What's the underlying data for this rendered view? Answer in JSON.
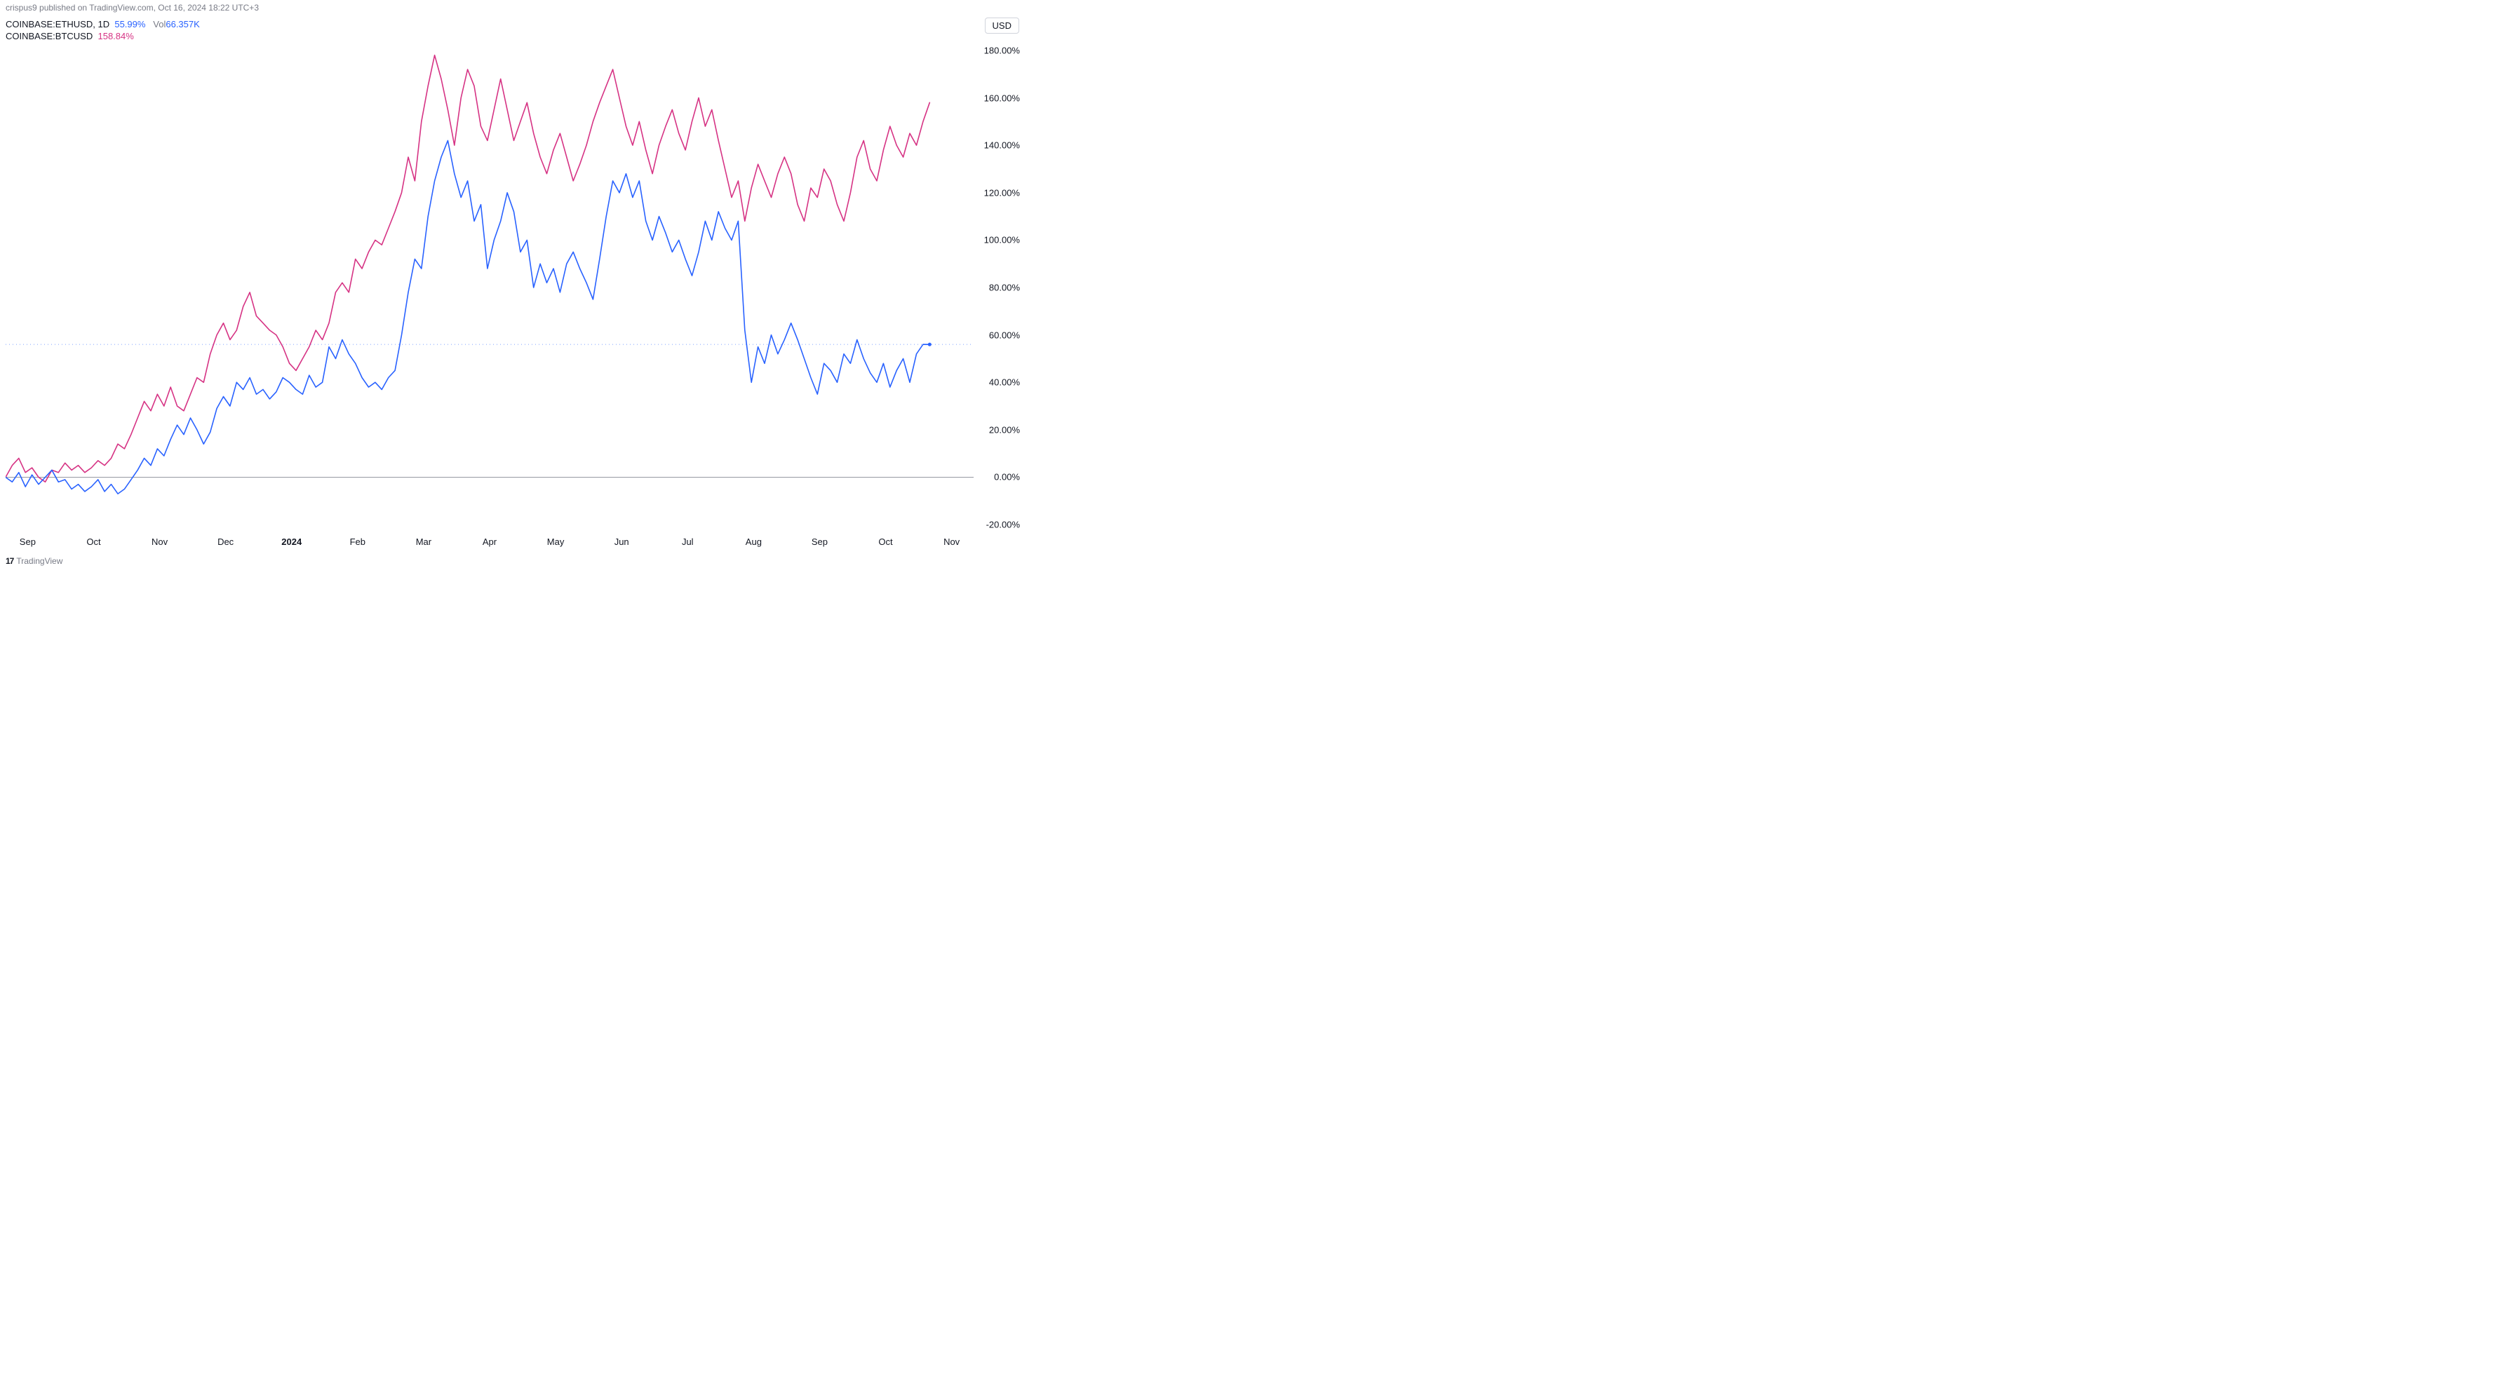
{
  "header": {
    "publish_text": "crispus9 published on TradingView.com, Oct 16, 2024 18:22 UTC+3"
  },
  "legend": {
    "series1": {
      "symbol": "COINBASE:ETHUSD",
      "timeframe": "1D",
      "pct": "55.99%",
      "vol_label": "Vol",
      "vol_value": "66.357K"
    },
    "series2": {
      "symbol": "COINBASE:BTCUSD",
      "pct": "158.84%"
    }
  },
  "usd_badge": "USD",
  "footer": {
    "logo": "17",
    "text": "TradingView"
  },
  "chart": {
    "type": "line",
    "background_color": "#ffffff",
    "y": {
      "min": -25,
      "max": 185,
      "ticks": [
        -20,
        0,
        20,
        40,
        60,
        80,
        100,
        120,
        140,
        160,
        180
      ],
      "tick_labels": [
        "-20.00%",
        "0.00%",
        "20.00%",
        "40.00%",
        "60.00%",
        "80.00%",
        "100.00%",
        "120.00%",
        "140.00%",
        "160.00%",
        "180.00%"
      ],
      "zero_line_color": "#9598a1",
      "dashed_line_value": 55.99,
      "dashed_line_color": "#2962ff"
    },
    "x": {
      "min": 0,
      "max": 440,
      "ticks": [
        10,
        40,
        70,
        100,
        130,
        160,
        190,
        220,
        250,
        280,
        310,
        340,
        370,
        400,
        430
      ],
      "tick_labels": [
        "Sep",
        "Oct",
        "Nov",
        "Dec",
        "2024",
        "Feb",
        "Mar",
        "Apr",
        "May",
        "Jun",
        "Jul",
        "Aug",
        "Sep",
        "Oct",
        "Nov"
      ],
      "bold_index": 4
    },
    "eth": {
      "color": "#2962ff",
      "width": 1.6,
      "data": [
        [
          0,
          0
        ],
        [
          3,
          -2
        ],
        [
          6,
          2
        ],
        [
          9,
          -4
        ],
        [
          12,
          1
        ],
        [
          15,
          -3
        ],
        [
          18,
          0
        ],
        [
          21,
          3
        ],
        [
          24,
          -2
        ],
        [
          27,
          -1
        ],
        [
          30,
          -5
        ],
        [
          33,
          -3
        ],
        [
          36,
          -6
        ],
        [
          39,
          -4
        ],
        [
          42,
          -1
        ],
        [
          45,
          -6
        ],
        [
          48,
          -3
        ],
        [
          51,
          -7
        ],
        [
          54,
          -5
        ],
        [
          57,
          -1
        ],
        [
          60,
          3
        ],
        [
          63,
          8
        ],
        [
          66,
          5
        ],
        [
          69,
          12
        ],
        [
          72,
          9
        ],
        [
          75,
          16
        ],
        [
          78,
          22
        ],
        [
          81,
          18
        ],
        [
          84,
          25
        ],
        [
          87,
          20
        ],
        [
          90,
          14
        ],
        [
          93,
          19
        ],
        [
          96,
          29
        ],
        [
          99,
          34
        ],
        [
          102,
          30
        ],
        [
          105,
          40
        ],
        [
          108,
          37
        ],
        [
          111,
          42
        ],
        [
          114,
          35
        ],
        [
          117,
          37
        ],
        [
          120,
          33
        ],
        [
          123,
          36
        ],
        [
          126,
          42
        ],
        [
          129,
          40
        ],
        [
          132,
          37
        ],
        [
          135,
          35
        ],
        [
          138,
          43
        ],
        [
          141,
          38
        ],
        [
          144,
          40
        ],
        [
          147,
          55
        ],
        [
          150,
          50
        ],
        [
          153,
          58
        ],
        [
          156,
          52
        ],
        [
          159,
          48
        ],
        [
          162,
          42
        ],
        [
          165,
          38
        ],
        [
          168,
          40
        ],
        [
          171,
          37
        ],
        [
          174,
          42
        ],
        [
          177,
          45
        ],
        [
          180,
          60
        ],
        [
          183,
          78
        ],
        [
          186,
          92
        ],
        [
          189,
          88
        ],
        [
          192,
          110
        ],
        [
          195,
          125
        ],
        [
          198,
          135
        ],
        [
          201,
          142
        ],
        [
          204,
          128
        ],
        [
          207,
          118
        ],
        [
          210,
          125
        ],
        [
          213,
          108
        ],
        [
          216,
          115
        ],
        [
          219,
          88
        ],
        [
          222,
          100
        ],
        [
          225,
          108
        ],
        [
          228,
          120
        ],
        [
          231,
          112
        ],
        [
          234,
          95
        ],
        [
          237,
          100
        ],
        [
          240,
          80
        ],
        [
          243,
          90
        ],
        [
          246,
          82
        ],
        [
          249,
          88
        ],
        [
          252,
          78
        ],
        [
          255,
          90
        ],
        [
          258,
          95
        ],
        [
          261,
          88
        ],
        [
          264,
          82
        ],
        [
          267,
          75
        ],
        [
          270,
          92
        ],
        [
          273,
          110
        ],
        [
          276,
          125
        ],
        [
          279,
          120
        ],
        [
          282,
          128
        ],
        [
          285,
          118
        ],
        [
          288,
          125
        ],
        [
          291,
          108
        ],
        [
          294,
          100
        ],
        [
          297,
          110
        ],
        [
          300,
          103
        ],
        [
          303,
          95
        ],
        [
          306,
          100
        ],
        [
          309,
          92
        ],
        [
          312,
          85
        ],
        [
          315,
          95
        ],
        [
          318,
          108
        ],
        [
          321,
          100
        ],
        [
          324,
          112
        ],
        [
          327,
          105
        ],
        [
          330,
          100
        ],
        [
          333,
          108
        ],
        [
          336,
          62
        ],
        [
          339,
          40
        ],
        [
          342,
          55
        ],
        [
          345,
          48
        ],
        [
          348,
          60
        ],
        [
          351,
          52
        ],
        [
          354,
          58
        ],
        [
          357,
          65
        ],
        [
          360,
          58
        ],
        [
          363,
          50
        ],
        [
          366,
          42
        ],
        [
          369,
          35
        ],
        [
          372,
          48
        ],
        [
          375,
          45
        ],
        [
          378,
          40
        ],
        [
          381,
          52
        ],
        [
          384,
          48
        ],
        [
          387,
          58
        ],
        [
          390,
          50
        ],
        [
          393,
          44
        ],
        [
          396,
          40
        ],
        [
          399,
          48
        ],
        [
          402,
          38
        ],
        [
          405,
          45
        ],
        [
          408,
          50
        ],
        [
          411,
          40
        ],
        [
          414,
          52
        ],
        [
          417,
          56
        ],
        [
          420,
          55.99
        ]
      ]
    },
    "btc": {
      "color": "#d63384",
      "width": 1.6,
      "data": [
        [
          0,
          0
        ],
        [
          3,
          5
        ],
        [
          6,
          8
        ],
        [
          9,
          2
        ],
        [
          12,
          4
        ],
        [
          15,
          0
        ],
        [
          18,
          -2
        ],
        [
          21,
          3
        ],
        [
          24,
          2
        ],
        [
          27,
          6
        ],
        [
          30,
          3
        ],
        [
          33,
          5
        ],
        [
          36,
          2
        ],
        [
          39,
          4
        ],
        [
          42,
          7
        ],
        [
          45,
          5
        ],
        [
          48,
          8
        ],
        [
          51,
          14
        ],
        [
          54,
          12
        ],
        [
          57,
          18
        ],
        [
          60,
          25
        ],
        [
          63,
          32
        ],
        [
          66,
          28
        ],
        [
          69,
          35
        ],
        [
          72,
          30
        ],
        [
          75,
          38
        ],
        [
          78,
          30
        ],
        [
          81,
          28
        ],
        [
          84,
          35
        ],
        [
          87,
          42
        ],
        [
          90,
          40
        ],
        [
          93,
          52
        ],
        [
          96,
          60
        ],
        [
          99,
          65
        ],
        [
          102,
          58
        ],
        [
          105,
          62
        ],
        [
          108,
          72
        ],
        [
          111,
          78
        ],
        [
          114,
          68
        ],
        [
          117,
          65
        ],
        [
          120,
          62
        ],
        [
          123,
          60
        ],
        [
          126,
          55
        ],
        [
          129,
          48
        ],
        [
          132,
          45
        ],
        [
          135,
          50
        ],
        [
          138,
          55
        ],
        [
          141,
          62
        ],
        [
          144,
          58
        ],
        [
          147,
          65
        ],
        [
          150,
          78
        ],
        [
          153,
          82
        ],
        [
          156,
          78
        ],
        [
          159,
          92
        ],
        [
          162,
          88
        ],
        [
          165,
          95
        ],
        [
          168,
          100
        ],
        [
          171,
          98
        ],
        [
          174,
          105
        ],
        [
          177,
          112
        ],
        [
          180,
          120
        ],
        [
          183,
          135
        ],
        [
          186,
          125
        ],
        [
          189,
          150
        ],
        [
          192,
          165
        ],
        [
          195,
          178
        ],
        [
          198,
          168
        ],
        [
          201,
          155
        ],
        [
          204,
          140
        ],
        [
          207,
          160
        ],
        [
          210,
          172
        ],
        [
          213,
          165
        ],
        [
          216,
          148
        ],
        [
          219,
          142
        ],
        [
          222,
          155
        ],
        [
          225,
          168
        ],
        [
          228,
          155
        ],
        [
          231,
          142
        ],
        [
          234,
          150
        ],
        [
          237,
          158
        ],
        [
          240,
          145
        ],
        [
          243,
          135
        ],
        [
          246,
          128
        ],
        [
          249,
          138
        ],
        [
          252,
          145
        ],
        [
          255,
          135
        ],
        [
          258,
          125
        ],
        [
          261,
          132
        ],
        [
          264,
          140
        ],
        [
          267,
          150
        ],
        [
          270,
          158
        ],
        [
          273,
          165
        ],
        [
          276,
          172
        ],
        [
          279,
          160
        ],
        [
          282,
          148
        ],
        [
          285,
          140
        ],
        [
          288,
          150
        ],
        [
          291,
          138
        ],
        [
          294,
          128
        ],
        [
          297,
          140
        ],
        [
          300,
          148
        ],
        [
          303,
          155
        ],
        [
          306,
          145
        ],
        [
          309,
          138
        ],
        [
          312,
          150
        ],
        [
          315,
          160
        ],
        [
          318,
          148
        ],
        [
          321,
          155
        ],
        [
          324,
          142
        ],
        [
          327,
          130
        ],
        [
          330,
          118
        ],
        [
          333,
          125
        ],
        [
          336,
          108
        ],
        [
          339,
          122
        ],
        [
          342,
          132
        ],
        [
          345,
          125
        ],
        [
          348,
          118
        ],
        [
          351,
          128
        ],
        [
          354,
          135
        ],
        [
          357,
          128
        ],
        [
          360,
          115
        ],
        [
          363,
          108
        ],
        [
          366,
          122
        ],
        [
          369,
          118
        ],
        [
          372,
          130
        ],
        [
          375,
          125
        ],
        [
          378,
          115
        ],
        [
          381,
          108
        ],
        [
          384,
          120
        ],
        [
          387,
          135
        ],
        [
          390,
          142
        ],
        [
          393,
          130
        ],
        [
          396,
          125
        ],
        [
          399,
          138
        ],
        [
          402,
          148
        ],
        [
          405,
          140
        ],
        [
          408,
          135
        ],
        [
          411,
          145
        ],
        [
          414,
          140
        ],
        [
          417,
          150
        ],
        [
          420,
          158
        ]
      ]
    }
  },
  "colors": {
    "text": "#131722",
    "muted": "#787b86",
    "eth": "#2962ff",
    "btc": "#d63384",
    "zero_line": "#9598a1"
  }
}
